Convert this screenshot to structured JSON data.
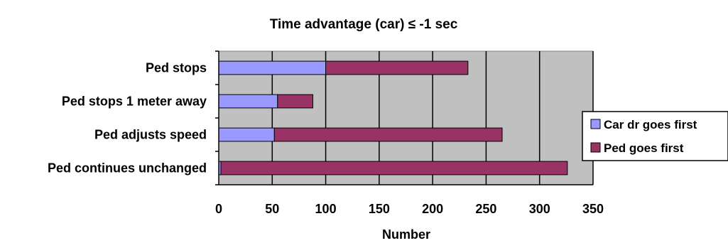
{
  "chart_data": {
    "type": "bar",
    "orientation": "horizontal",
    "stacked": true,
    "title": "Time advantage (car) ≤ -1 sec",
    "xlabel": "Number",
    "ylabel": "",
    "categories": [
      "Ped stops",
      "Ped stops 1 meter away",
      "Ped adjusts speed",
      "Ped continues unchanged"
    ],
    "series": [
      {
        "name": "Car dr goes first",
        "values": [
          100,
          55,
          52,
          2
        ],
        "color": "#9999ff"
      },
      {
        "name": "Ped goes first",
        "values": [
          133,
          33,
          213,
          324
        ],
        "color": "#993366"
      }
    ],
    "xlim": [
      0,
      350
    ],
    "xticks": [
      "0",
      "50",
      "100",
      "150",
      "200",
      "250",
      "300",
      "350"
    ],
    "grid": "vertical",
    "plot_background": "#c0c0c0",
    "legend_position": "right"
  }
}
